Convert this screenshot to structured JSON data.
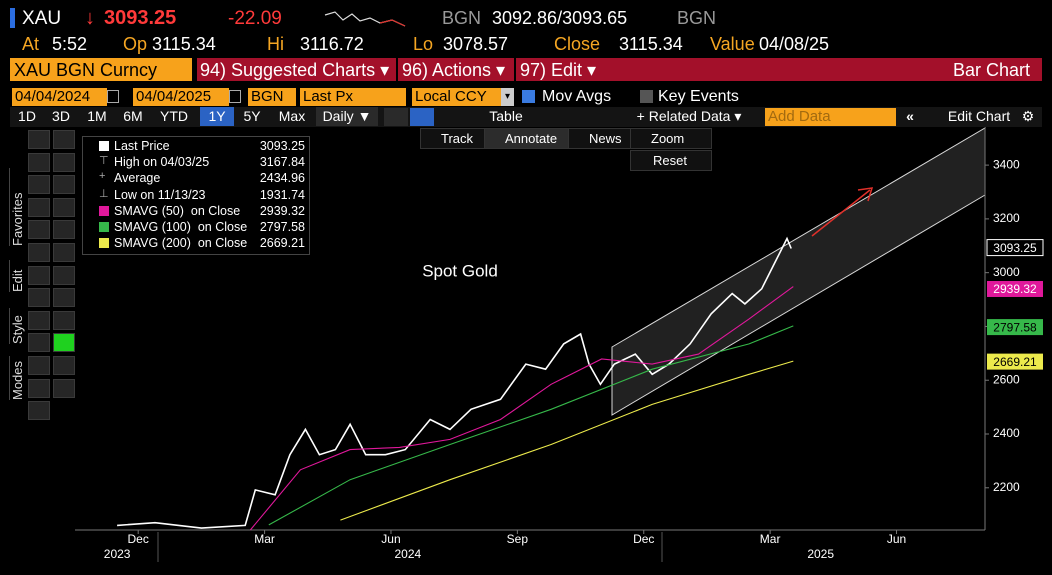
{
  "header": {
    "symbol": "XAU",
    "direction": "↓",
    "price": "3093.25",
    "change": "-22.09",
    "source": "BGN",
    "bid_ask": "3092.86/3093.65",
    "source2": "BGN"
  },
  "quote": [
    {
      "label": "At",
      "value": "5:52"
    },
    {
      "label": "Op",
      "value": "3115.34"
    },
    {
      "label": "Hi",
      "value": "3116.72"
    },
    {
      "label": "Lo",
      "value": "3078.57"
    },
    {
      "label": "Close",
      "value": "3115.34"
    },
    {
      "label": "Value",
      "value": "04/08/25"
    }
  ],
  "menu": {
    "security": "XAU BGN Curncy",
    "items": [
      "94) Suggested Charts ▾",
      "96) Actions ▾",
      "97) Edit ▾"
    ],
    "view": "Bar Chart"
  },
  "settings": {
    "start": "04/04/2024",
    "end": "04/04/2025",
    "source": "BGN",
    "field": "Last Px",
    "currency": "Local CCY",
    "mov_avgs": "Mov Avgs",
    "key_events": "Key Events"
  },
  "periods": [
    "1D",
    "3D",
    "1M",
    "6M",
    "YTD",
    "1Y",
    "5Y",
    "Max"
  ],
  "active_period": 5,
  "frequency": "Daily ▼",
  "table": "Table",
  "related": "+ Related Data ▾",
  "add_data": "Add Data",
  "edit_chart": "Edit Chart",
  "chart_tools": [
    "Track",
    "Annotate",
    "News",
    "Zoom",
    "Reset"
  ],
  "side_tabs": [
    "Favorites",
    "Edit",
    "Style",
    "Modes"
  ],
  "chart_data": {
    "type": "line",
    "annotations": [
      "Spot Gold"
    ],
    "xlim": [
      -1.5,
      20.1
    ],
    "xticks": [
      {
        "value": 0,
        "label": "Dec"
      },
      {
        "value": 3,
        "label": "Mar"
      },
      {
        "value": 6,
        "label": "Jun"
      },
      {
        "value": 9,
        "label": "Sep"
      },
      {
        "value": 12,
        "label": "Dec"
      },
      {
        "value": 15,
        "label": "Mar"
      },
      {
        "value": 18,
        "label": "Jun"
      }
    ],
    "year_ticks": [
      {
        "value": -0.5,
        "label": "2023"
      },
      {
        "value": 6.4,
        "label": "2024"
      },
      {
        "value": 16.2,
        "label": "2025"
      }
    ],
    "ylim": [
      2043,
      3538
    ],
    "yticks": [
      2200,
      2400,
      2600,
      2800,
      3000,
      3200,
      3400
    ],
    "grid": false,
    "series": [
      {
        "name": "Last Price",
        "color": "#ffffff",
        "last": 3093.25,
        "x": [
          -0.5,
          0.4,
          1.5,
          2.54,
          2.78,
          3.25,
          3.6,
          3.97,
          4.3,
          4.68,
          5.03,
          5.4,
          5.87,
          6.34,
          6.93,
          7.4,
          7.9,
          8.6,
          9.2,
          9.67,
          10.1,
          10.5,
          10.7,
          10.97,
          11.3,
          11.8,
          12.2,
          12.6,
          13.1,
          13.6,
          14.1,
          14.4,
          14.8,
          15.1,
          15.4,
          15.5
        ],
        "values": [
          2060,
          2070,
          2050,
          2060,
          2192,
          2174,
          2323,
          2417,
          2323,
          2342,
          2436,
          2323,
          2323,
          2342,
          2454,
          2417,
          2492,
          2529,
          2660,
          2641,
          2735,
          2772,
          2660,
          2585,
          2660,
          2697,
          2622,
          2660,
          2735,
          2847,
          2922,
          2884,
          2940,
          3034,
          3127,
          3090
        ]
      },
      {
        "name": "SMAVG (50)  on Close",
        "color": "#e0189b",
        "last": 2939.32,
        "x": [
          2.66,
          3.85,
          5.03,
          6.2,
          7.4,
          8.6,
          9.8,
          11,
          12.2,
          13.3,
          14.5,
          15.55
        ],
        "values": [
          2043,
          2267,
          2342,
          2350,
          2380,
          2454,
          2585,
          2679,
          2660,
          2697,
          2828,
          2948
        ]
      },
      {
        "name": "SMAVG (100)  on Close",
        "color": "#36b84a",
        "last": 2797.58,
        "x": [
          3.1,
          5.03,
          7.4,
          9.8,
          12.2,
          14.5,
          15.55
        ],
        "values": [
          2062,
          2230,
          2361,
          2492,
          2641,
          2735,
          2802
        ]
      },
      {
        "name": "SMAVG (200)  on Close",
        "color": "#ecea4c",
        "last": 2669.21,
        "x": [
          4.8,
          7.4,
          9.8,
          12.2,
          14.5,
          15.55
        ],
        "values": [
          2080,
          2230,
          2361,
          2510,
          2622,
          2671
        ]
      }
    ],
    "stats": [
      {
        "label": "High on 04/03/25",
        "value": 3167.84
      },
      {
        "label": "Average",
        "value": 2434.96
      },
      {
        "label": "Low on 11/13/23",
        "value": 1931.74
      }
    ]
  }
}
